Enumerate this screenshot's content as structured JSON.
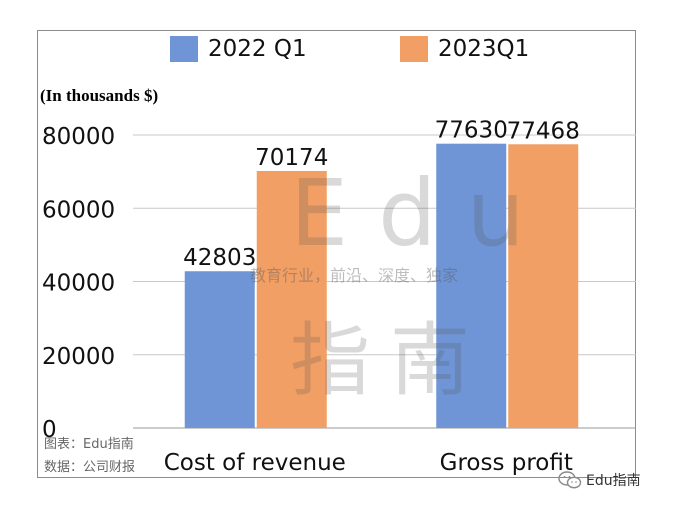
{
  "unit_label": "(In thousands $)",
  "notes": {
    "line1": "图表：Edu指南",
    "line2": "数据：公司财报"
  },
  "watermark": {
    "brand": "Edu",
    "tagline": "教育行业，前沿、深度、独家",
    "cn": "指南"
  },
  "wechat_label": "Edu指南",
  "colors": {
    "series_2022": "#6f95d6",
    "series_2023": "#f19f64",
    "grid": "#c8c8c8"
  },
  "chart_data": {
    "type": "bar",
    "categories": [
      "Cost of revenue",
      "Gross profit"
    ],
    "series": [
      {
        "name": "2022 Q1",
        "values": [
          42803,
          77630
        ]
      },
      {
        "name": "2023Q1",
        "values": [
          70174,
          77468
        ]
      }
    ],
    "data_labels": [
      [
        "42803",
        "77630"
      ],
      [
        "70174",
        "77468"
      ]
    ],
    "ylim": [
      0,
      80000
    ],
    "yticks": [
      0,
      20000,
      40000,
      60000,
      80000
    ],
    "grid": true,
    "legend": "top-center"
  }
}
